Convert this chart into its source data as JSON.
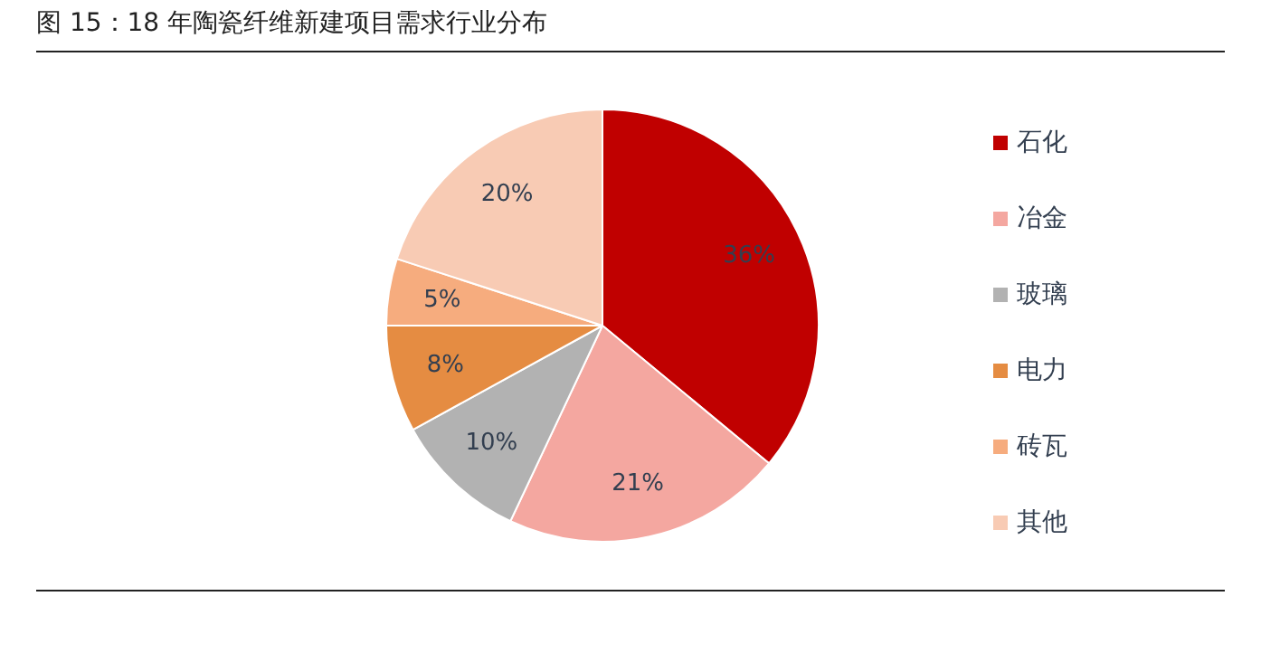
{
  "chart_data": {
    "type": "pie",
    "title": "图 15：18 年陶瓷纤维新建项目需求行业分布",
    "categories": [
      "石化",
      "冶金",
      "玻璃",
      "电力",
      "砖瓦",
      "其他"
    ],
    "values": [
      36,
      21,
      10,
      8,
      5,
      20
    ],
    "colors": [
      "#c00000",
      "#f4a7a0",
      "#b2b2b2",
      "#e58c42",
      "#f6ac7e",
      "#f8cbb4"
    ],
    "value_labels": [
      "36%",
      "21%",
      "10%",
      "8%",
      "5%",
      "20%"
    ],
    "legend": "right"
  }
}
